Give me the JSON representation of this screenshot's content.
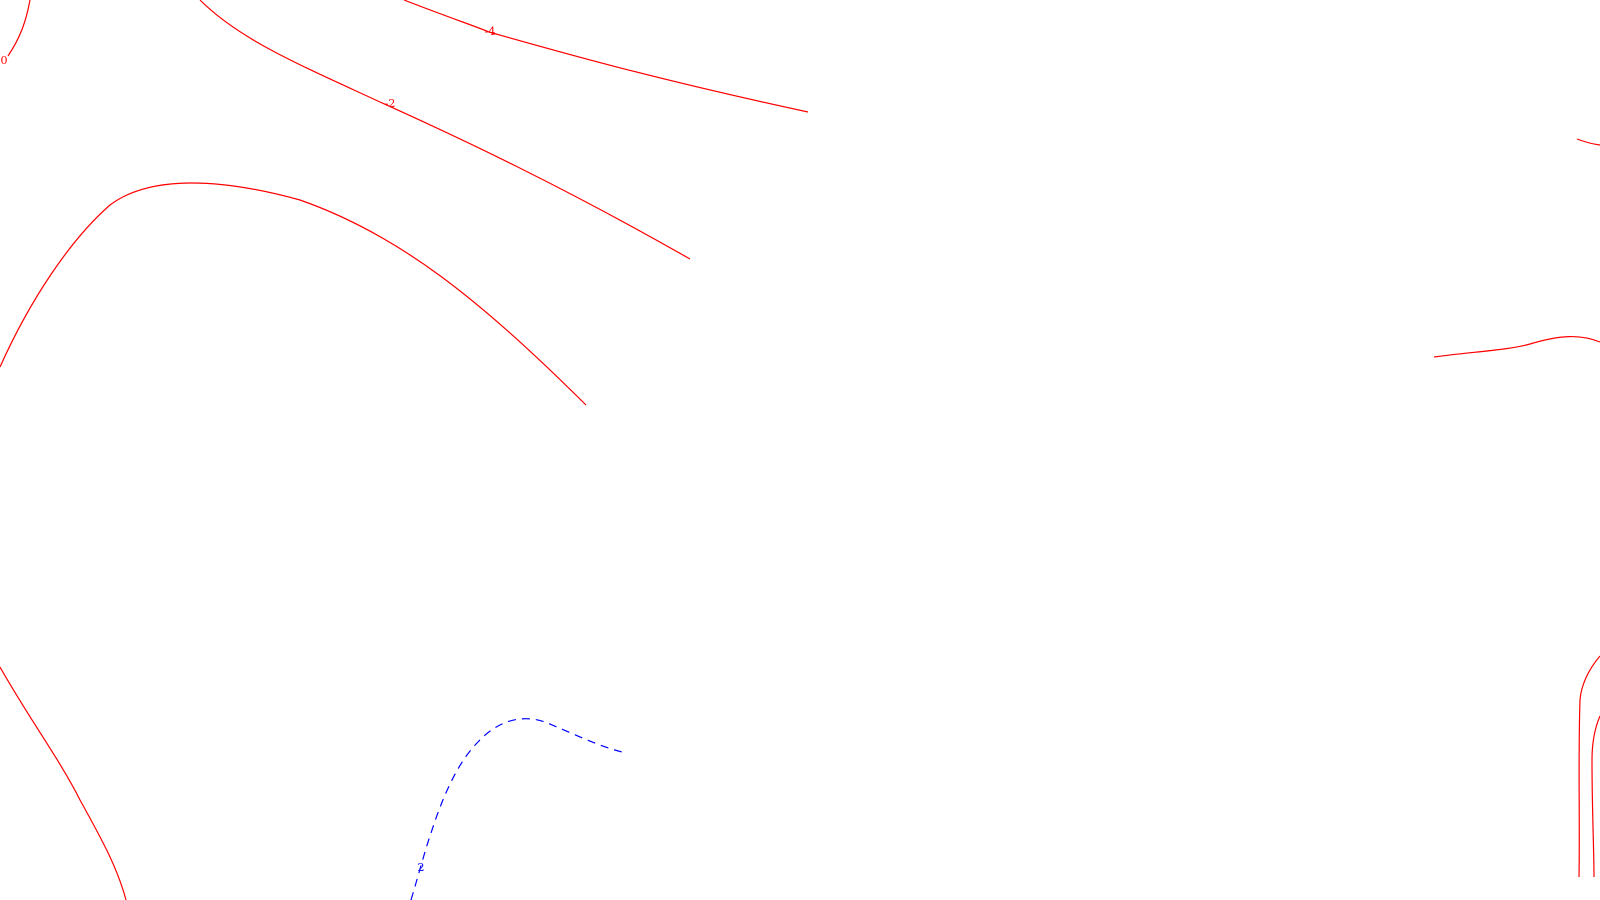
{
  "colors": {
    "background": "#ffffff",
    "negative_contour": "#ff0000",
    "positive_contour": "#0000ff"
  },
  "contours": [
    {
      "id": "c-4",
      "level": -4,
      "label": "-4",
      "style": "solid",
      "color_key": "negative_contour"
    },
    {
      "id": "c-2",
      "level": -2,
      "label": "-2",
      "style": "solid",
      "color_key": "negative_contour"
    },
    {
      "id": "c0-top-left",
      "level": 0,
      "label": "0",
      "style": "solid",
      "color_key": "negative_contour"
    },
    {
      "id": "c-arc-upper-left",
      "level": null,
      "label": "",
      "style": "solid",
      "color_key": "negative_contour"
    },
    {
      "id": "c-lower-left",
      "level": null,
      "label": "",
      "style": "solid",
      "color_key": "negative_contour"
    },
    {
      "id": "c-right-top",
      "level": null,
      "label": "",
      "style": "solid",
      "color_key": "negative_contour"
    },
    {
      "id": "c-right-mid",
      "level": null,
      "label": "",
      "style": "solid",
      "color_key": "negative_contour"
    },
    {
      "id": "c-right-bottom-outer",
      "level": null,
      "label": "",
      "style": "solid",
      "color_key": "negative_contour"
    },
    {
      "id": "c-right-bottom-inner",
      "level": null,
      "label": "",
      "style": "solid",
      "color_key": "negative_contour"
    },
    {
      "id": "c2",
      "level": 2,
      "label": "2",
      "style": "dashed",
      "color_key": "positive_contour"
    }
  ]
}
